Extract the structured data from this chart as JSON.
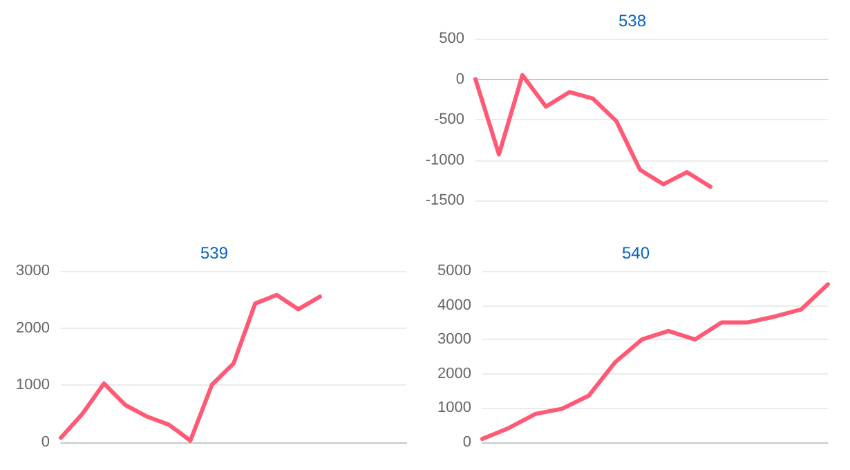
{
  "chart_data": [
    {
      "type": "line",
      "title": "538",
      "categories": [
        null,
        null,
        null,
        null,
        null,
        null,
        null,
        null,
        null,
        null,
        null,
        null,
        null,
        null,
        null,
        null
      ],
      "series": [
        {
          "color": "#ff5a75",
          "values": [
            0,
            -930,
            50,
            -340,
            -160,
            -240,
            -520,
            -1120,
            -1300,
            -1150,
            -1330,
            null,
            null,
            null,
            null,
            null
          ]
        }
      ],
      "ylim": [
        -1500,
        500
      ],
      "yticks": [
        -1500,
        -1000,
        -500,
        0,
        500
      ],
      "grid": "y",
      "marker": "none",
      "tick_labels": "y"
    },
    {
      "type": "line",
      "title": "539",
      "categories": [
        null,
        null,
        null,
        null,
        null,
        null,
        null,
        null,
        null,
        null,
        null,
        null,
        null,
        null,
        null,
        null,
        null
      ],
      "series": [
        {
          "color": "#ff5a75",
          "values": [
            80,
            500,
            1030,
            650,
            450,
            310,
            30,
            1010,
            1380,
            2430,
            2580,
            2330,
            2550,
            null,
            null,
            null,
            null
          ]
        }
      ],
      "ylim": [
        0,
        3000
      ],
      "yticks": [
        0,
        1000,
        2000,
        3000
      ],
      "grid": "y",
      "marker": "none",
      "tick_labels": "y"
    },
    {
      "type": "line",
      "title": "540",
      "categories": [
        null,
        null,
        null,
        null,
        null,
        null,
        null,
        null,
        null,
        null,
        null,
        null,
        null,
        null
      ],
      "series": [
        {
          "color": "#ff5a75",
          "values": [
            100,
            420,
            830,
            980,
            1360,
            2340,
            3000,
            3250,
            3000,
            3500,
            3500,
            3670,
            3880,
            4610
          ]
        }
      ],
      "ylim": [
        0,
        5000
      ],
      "yticks": [
        0,
        1000,
        2000,
        3000,
        4000,
        5000
      ],
      "grid": "y",
      "marker": "none",
      "tick_labels": "y"
    }
  ]
}
